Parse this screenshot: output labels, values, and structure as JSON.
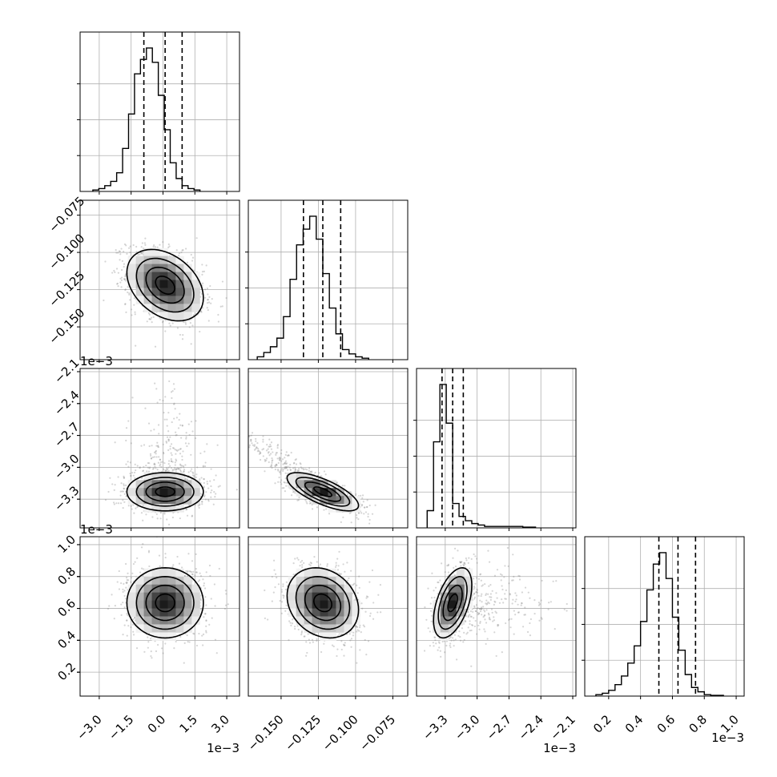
{
  "chart_data": {
    "type": "corner",
    "n_params": 4,
    "grid": true,
    "quantiles_shown": [
      0.16,
      0.5,
      0.84
    ],
    "contour_levels": 4,
    "params": [
      {
        "range": [
          -3.9,
          3.6
        ],
        "ticks": [
          -3.0,
          -1.5,
          0.0,
          1.5,
          3.0
        ],
        "tick_labels": [
          "−3.0",
          "−1.5",
          "0.0",
          "1.5",
          "3.0"
        ],
        "offset_text": "1e−3",
        "hist": {
          "start": -3.3,
          "bin_width": 0.28,
          "counts": [
            0.01,
            0.02,
            0.04,
            0.07,
            0.13,
            0.3,
            0.54,
            0.82,
            0.92,
            1.0,
            0.9,
            0.67,
            0.43,
            0.2,
            0.09,
            0.04,
            0.02,
            0.01
          ]
        },
        "quantiles": [
          -0.9,
          0.1,
          0.9
        ],
        "center": 0.1,
        "sigma": 0.9
      },
      {
        "range": [
          -0.172,
          -0.065
        ],
        "ticks": [
          -0.15,
          -0.125,
          -0.1,
          -0.075
        ],
        "tick_labels": [
          "−0.150",
          "−0.125",
          "−0.100",
          "−0.075"
        ],
        "offset_text": "",
        "hist": {
          "start": -0.166,
          "bin_width": 0.0044,
          "counts": [
            0.02,
            0.05,
            0.09,
            0.15,
            0.3,
            0.56,
            0.8,
            0.91,
            1.0,
            0.84,
            0.6,
            0.36,
            0.18,
            0.07,
            0.04,
            0.02,
            0.01
          ]
        },
        "quantiles": [
          -0.135,
          -0.122,
          -0.11
        ],
        "center": -0.122,
        "sigma": 0.012
      },
      {
        "range": [
          -3.57,
          -2.07
        ],
        "ticks": [
          -3.3,
          -3.0,
          -2.7,
          -2.4,
          -2.1
        ],
        "tick_labels": [
          "−3.3",
          "−3.0",
          "−2.7",
          "−2.4",
          "−2.1"
        ],
        "offset_text": "1e−3",
        "hist": {
          "start": -3.47,
          "bin_width": 0.06,
          "counts": [
            0.12,
            0.6,
            1.0,
            0.73,
            0.17,
            0.08,
            0.05,
            0.03,
            0.02,
            0.01,
            0.01,
            0.01,
            0.01,
            0.01,
            0.01,
            0.005,
            0.005
          ]
        },
        "quantiles": [
          -3.33,
          -3.23,
          -3.13
        ],
        "center": -3.23,
        "sigma": 0.09
      },
      {
        "range": [
          0.05,
          1.05
        ],
        "ticks": [
          0.2,
          0.4,
          0.6,
          0.8,
          1.0
        ],
        "tick_labels": [
          "0.2",
          "0.4",
          "0.6",
          "0.8",
          "1.0"
        ],
        "offset_text": "1e−3",
        "hist": {
          "start": 0.12,
          "bin_width": 0.04,
          "counts": [
            0.01,
            0.02,
            0.04,
            0.08,
            0.14,
            0.23,
            0.35,
            0.52,
            0.74,
            0.92,
            1.0,
            0.82,
            0.55,
            0.32,
            0.15,
            0.06,
            0.03,
            0.01,
            0.005,
            0.005
          ]
        },
        "quantiles": [
          0.515,
          0.635,
          0.745
        ],
        "center": 0.635,
        "sigma": 0.11
      }
    ],
    "correlations": [
      [
        1,
        2,
        -0.35
      ],
      [
        1,
        3,
        0.0
      ],
      [
        2,
        3,
        -0.72
      ],
      [
        1,
        4,
        0.0
      ],
      [
        2,
        4,
        -0.2
      ],
      [
        3,
        4,
        0.5
      ]
    ]
  }
}
